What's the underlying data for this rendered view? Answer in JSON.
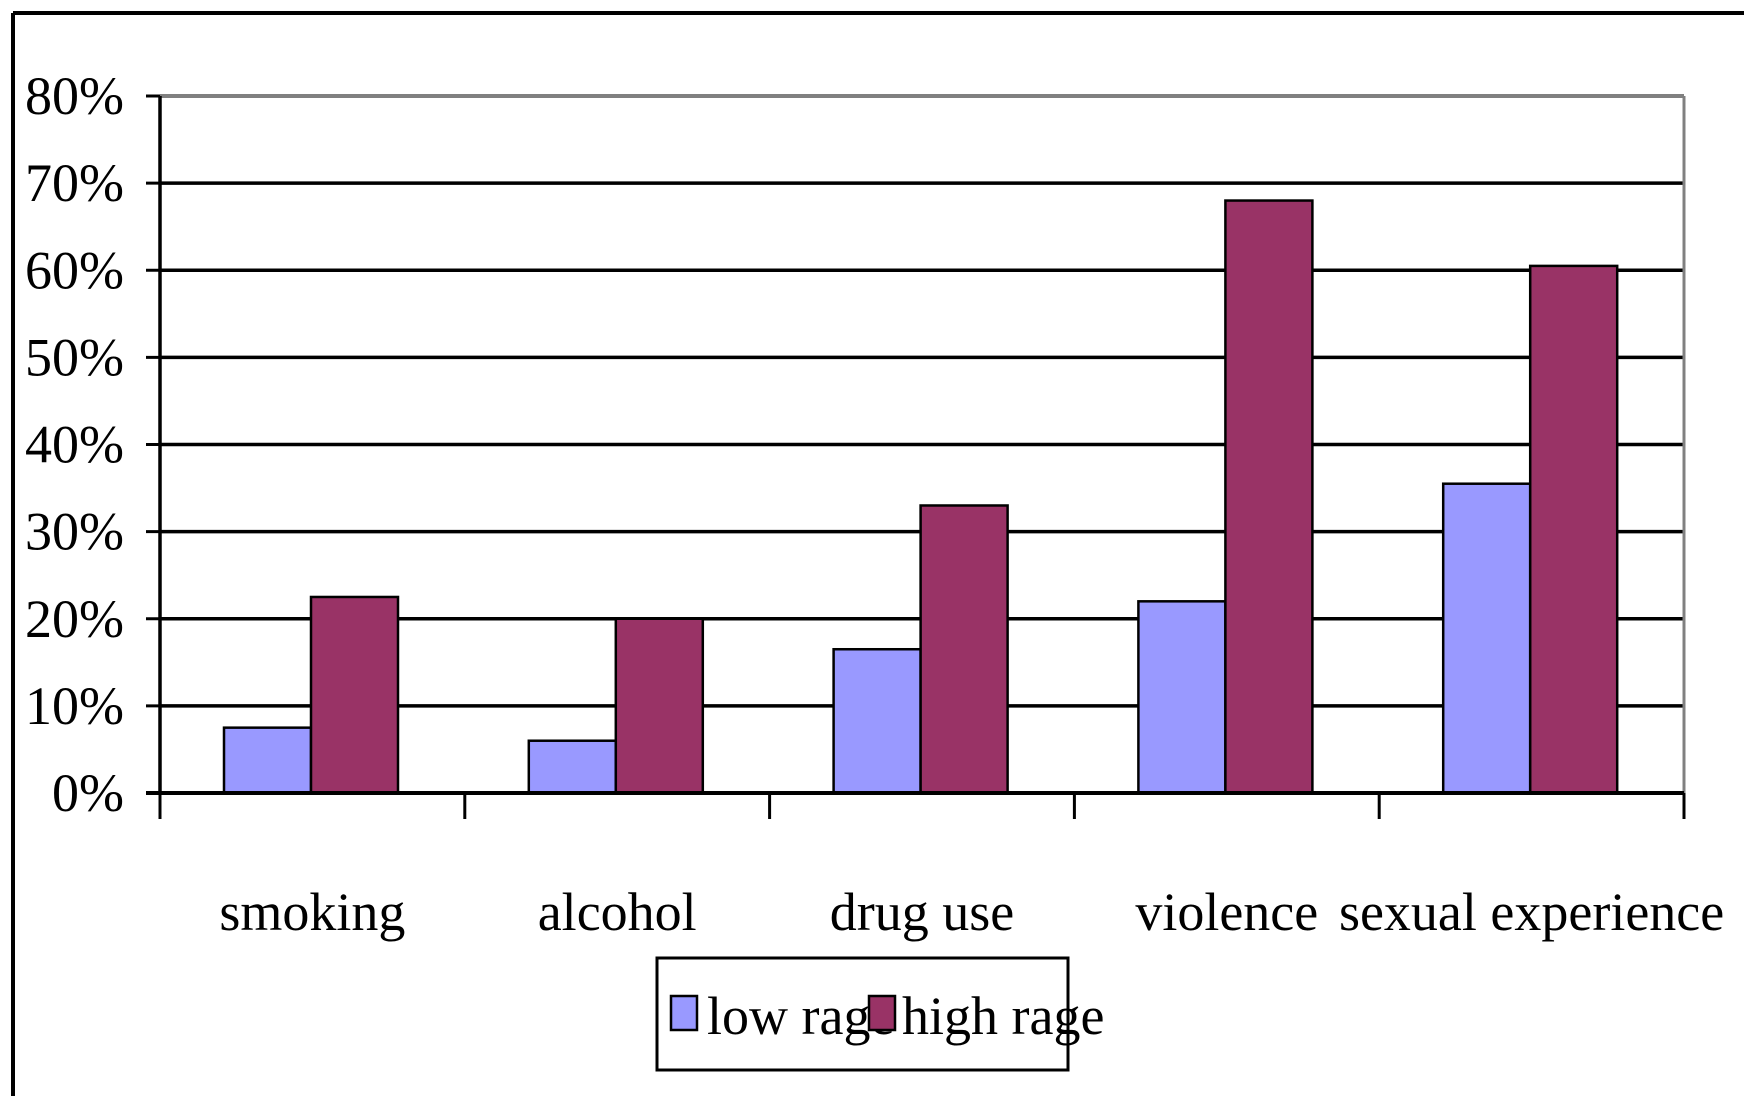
{
  "chart_data": {
    "type": "bar",
    "categories": [
      "smoking",
      "alcohol",
      "drug use",
      "violence",
      "sexual experience"
    ],
    "series": [
      {
        "name": "low rage",
        "values": [
          7.5,
          6,
          16.5,
          22,
          35.5
        ]
      },
      {
        "name": "high rage",
        "values": [
          22.5,
          20,
          33,
          68,
          60.5
        ]
      }
    ],
    "ylim": [
      0,
      80
    ],
    "yticks": [
      "0%",
      "10%",
      "20%",
      "30%",
      "40%",
      "50%",
      "60%",
      "70%",
      "80%"
    ],
    "ytick_values": [
      0,
      10,
      20,
      30,
      40,
      50,
      60,
      70,
      80
    ],
    "grid": true,
    "legend_position": "bottom-center",
    "colors": {
      "low rage": "#9999ff",
      "high rage": "#993366"
    }
  }
}
